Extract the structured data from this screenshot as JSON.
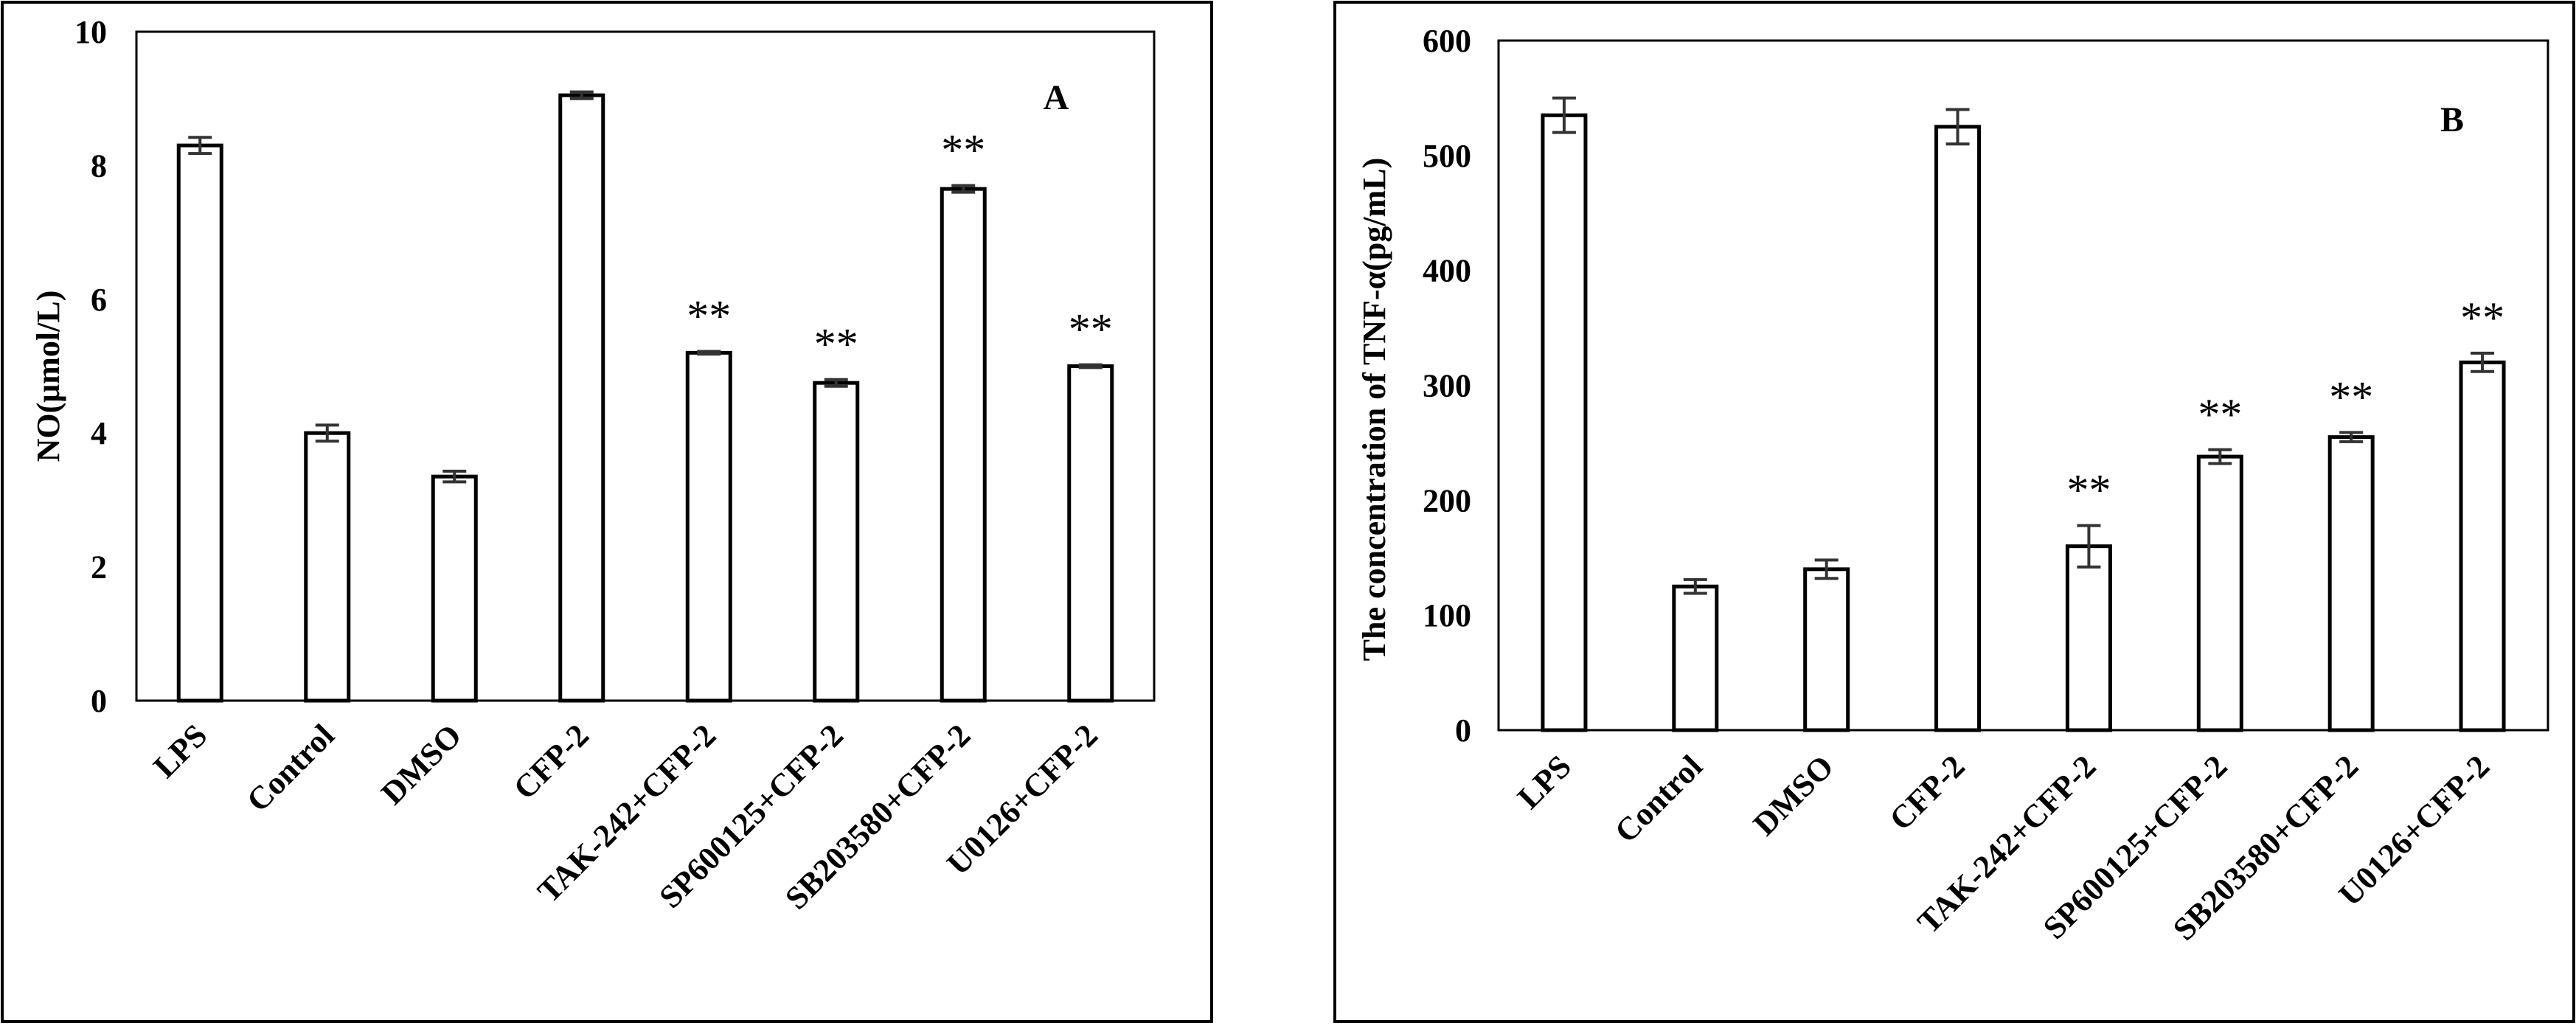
{
  "chart_data": [
    {
      "type": "bar",
      "panel_label": "A",
      "ylabel": "NO(μmol/L)",
      "ylim": [
        0,
        10
      ],
      "yticks": [
        "0",
        "2",
        "4",
        "6",
        "8",
        "10"
      ],
      "categories": [
        "LPS",
        "Control",
        "DMSO",
        "CFP-2",
        "TAK-242+CFP-2",
        "SP600125+CFP-2",
        "SB203580+CFP-2",
        "U0126+CFP-2"
      ],
      "values": [
        8.3,
        4.0,
        3.35,
        9.05,
        5.2,
        4.75,
        7.65,
        5.0
      ],
      "errors": [
        0.12,
        0.12,
        0.08,
        0.05,
        0.02,
        0.05,
        0.05,
        0.02
      ],
      "significance": [
        "",
        "",
        "",
        "",
        "**",
        "**",
        "**",
        "**"
      ],
      "bar_fill": "#ffffff",
      "bar_stroke": "#000000"
    },
    {
      "type": "bar",
      "panel_label": "B",
      "ylabel": "The concentration of TNF-α(pg/mL)",
      "ylim": [
        0,
        600
      ],
      "yticks": [
        "0",
        "100",
        "200",
        "300",
        "400",
        "500",
        "600"
      ],
      "categories": [
        "LPS",
        "Control",
        "DMSO",
        "CFP-2",
        "TAK-242+CFP-2",
        "SP600125+CFP-2",
        "SB203580+CFP-2",
        "U0126+CFP-2"
      ],
      "values": [
        535,
        125,
        140,
        525,
        160,
        238,
        255,
        320
      ],
      "errors": [
        15,
        6,
        8,
        15,
        18,
        6,
        4,
        8
      ],
      "significance": [
        "",
        "",
        "",
        "",
        "**",
        "**",
        "**",
        "**"
      ],
      "bar_fill": "#ffffff",
      "bar_stroke": "#000000"
    }
  ]
}
